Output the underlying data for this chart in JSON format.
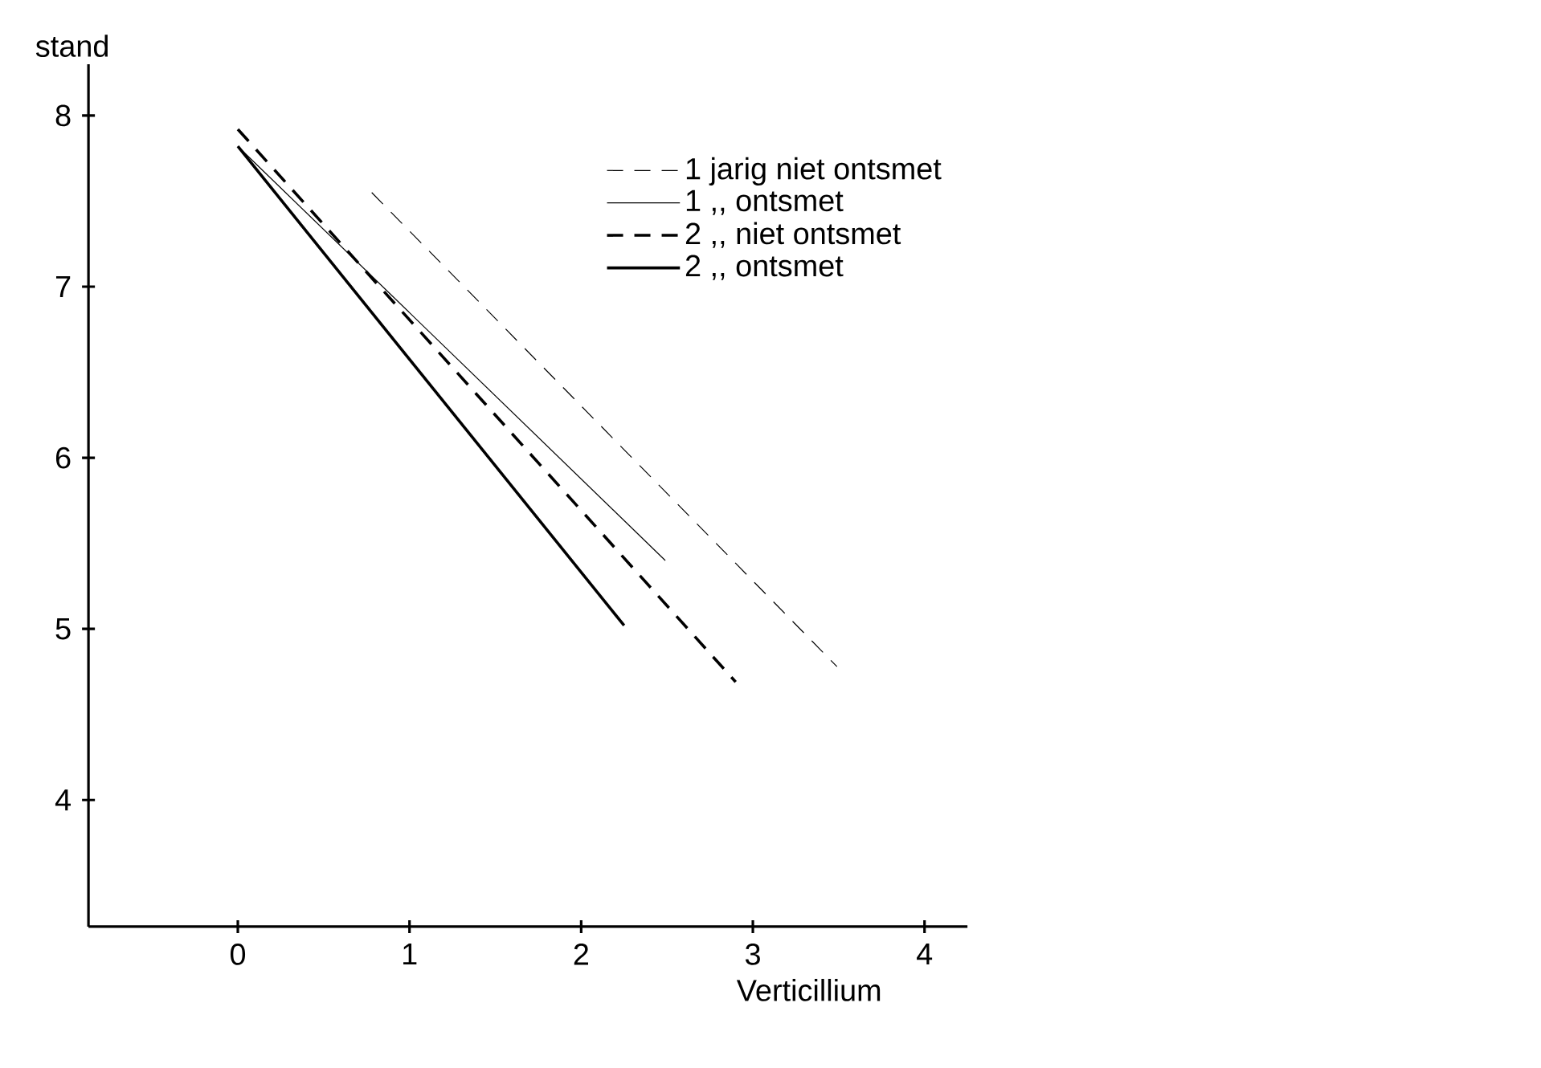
{
  "chart_data": {
    "type": "line",
    "xlabel": "Verticillium",
    "ylabel": "stand",
    "xlim": [
      -0.87,
      4.25
    ],
    "ylim": [
      3.26,
      8.3
    ],
    "xticks": [
      0,
      1,
      2,
      3,
      4
    ],
    "yticks": [
      4,
      5,
      6,
      7,
      8
    ],
    "grid": false,
    "legend": "top right",
    "marker": "none",
    "series": [
      {
        "name": "1 jarig niet ontsmet",
        "color": "#000000",
        "line_style": "dashed",
        "x": [
          0.78,
          3.49
        ],
        "values": [
          7.55,
          4.78
        ]
      },
      {
        "name": "1 ,, ontsmet",
        "color": "#000000",
        "line_style": "solid",
        "x": [
          0,
          2.49
        ],
        "values": [
          7.82,
          5.4
        ]
      },
      {
        "name": "2 ,, niet ontsmet",
        "color": "#000000",
        "line_style": "dashed",
        "x": [
          0,
          2.9
        ],
        "values": [
          7.92,
          4.69
        ]
      },
      {
        "name": "2 ,, ontsmet",
        "color": "#000000",
        "line_style": "solid",
        "x": [
          0,
          2.25
        ],
        "values": [
          7.82,
          5.02
        ]
      }
    ]
  }
}
